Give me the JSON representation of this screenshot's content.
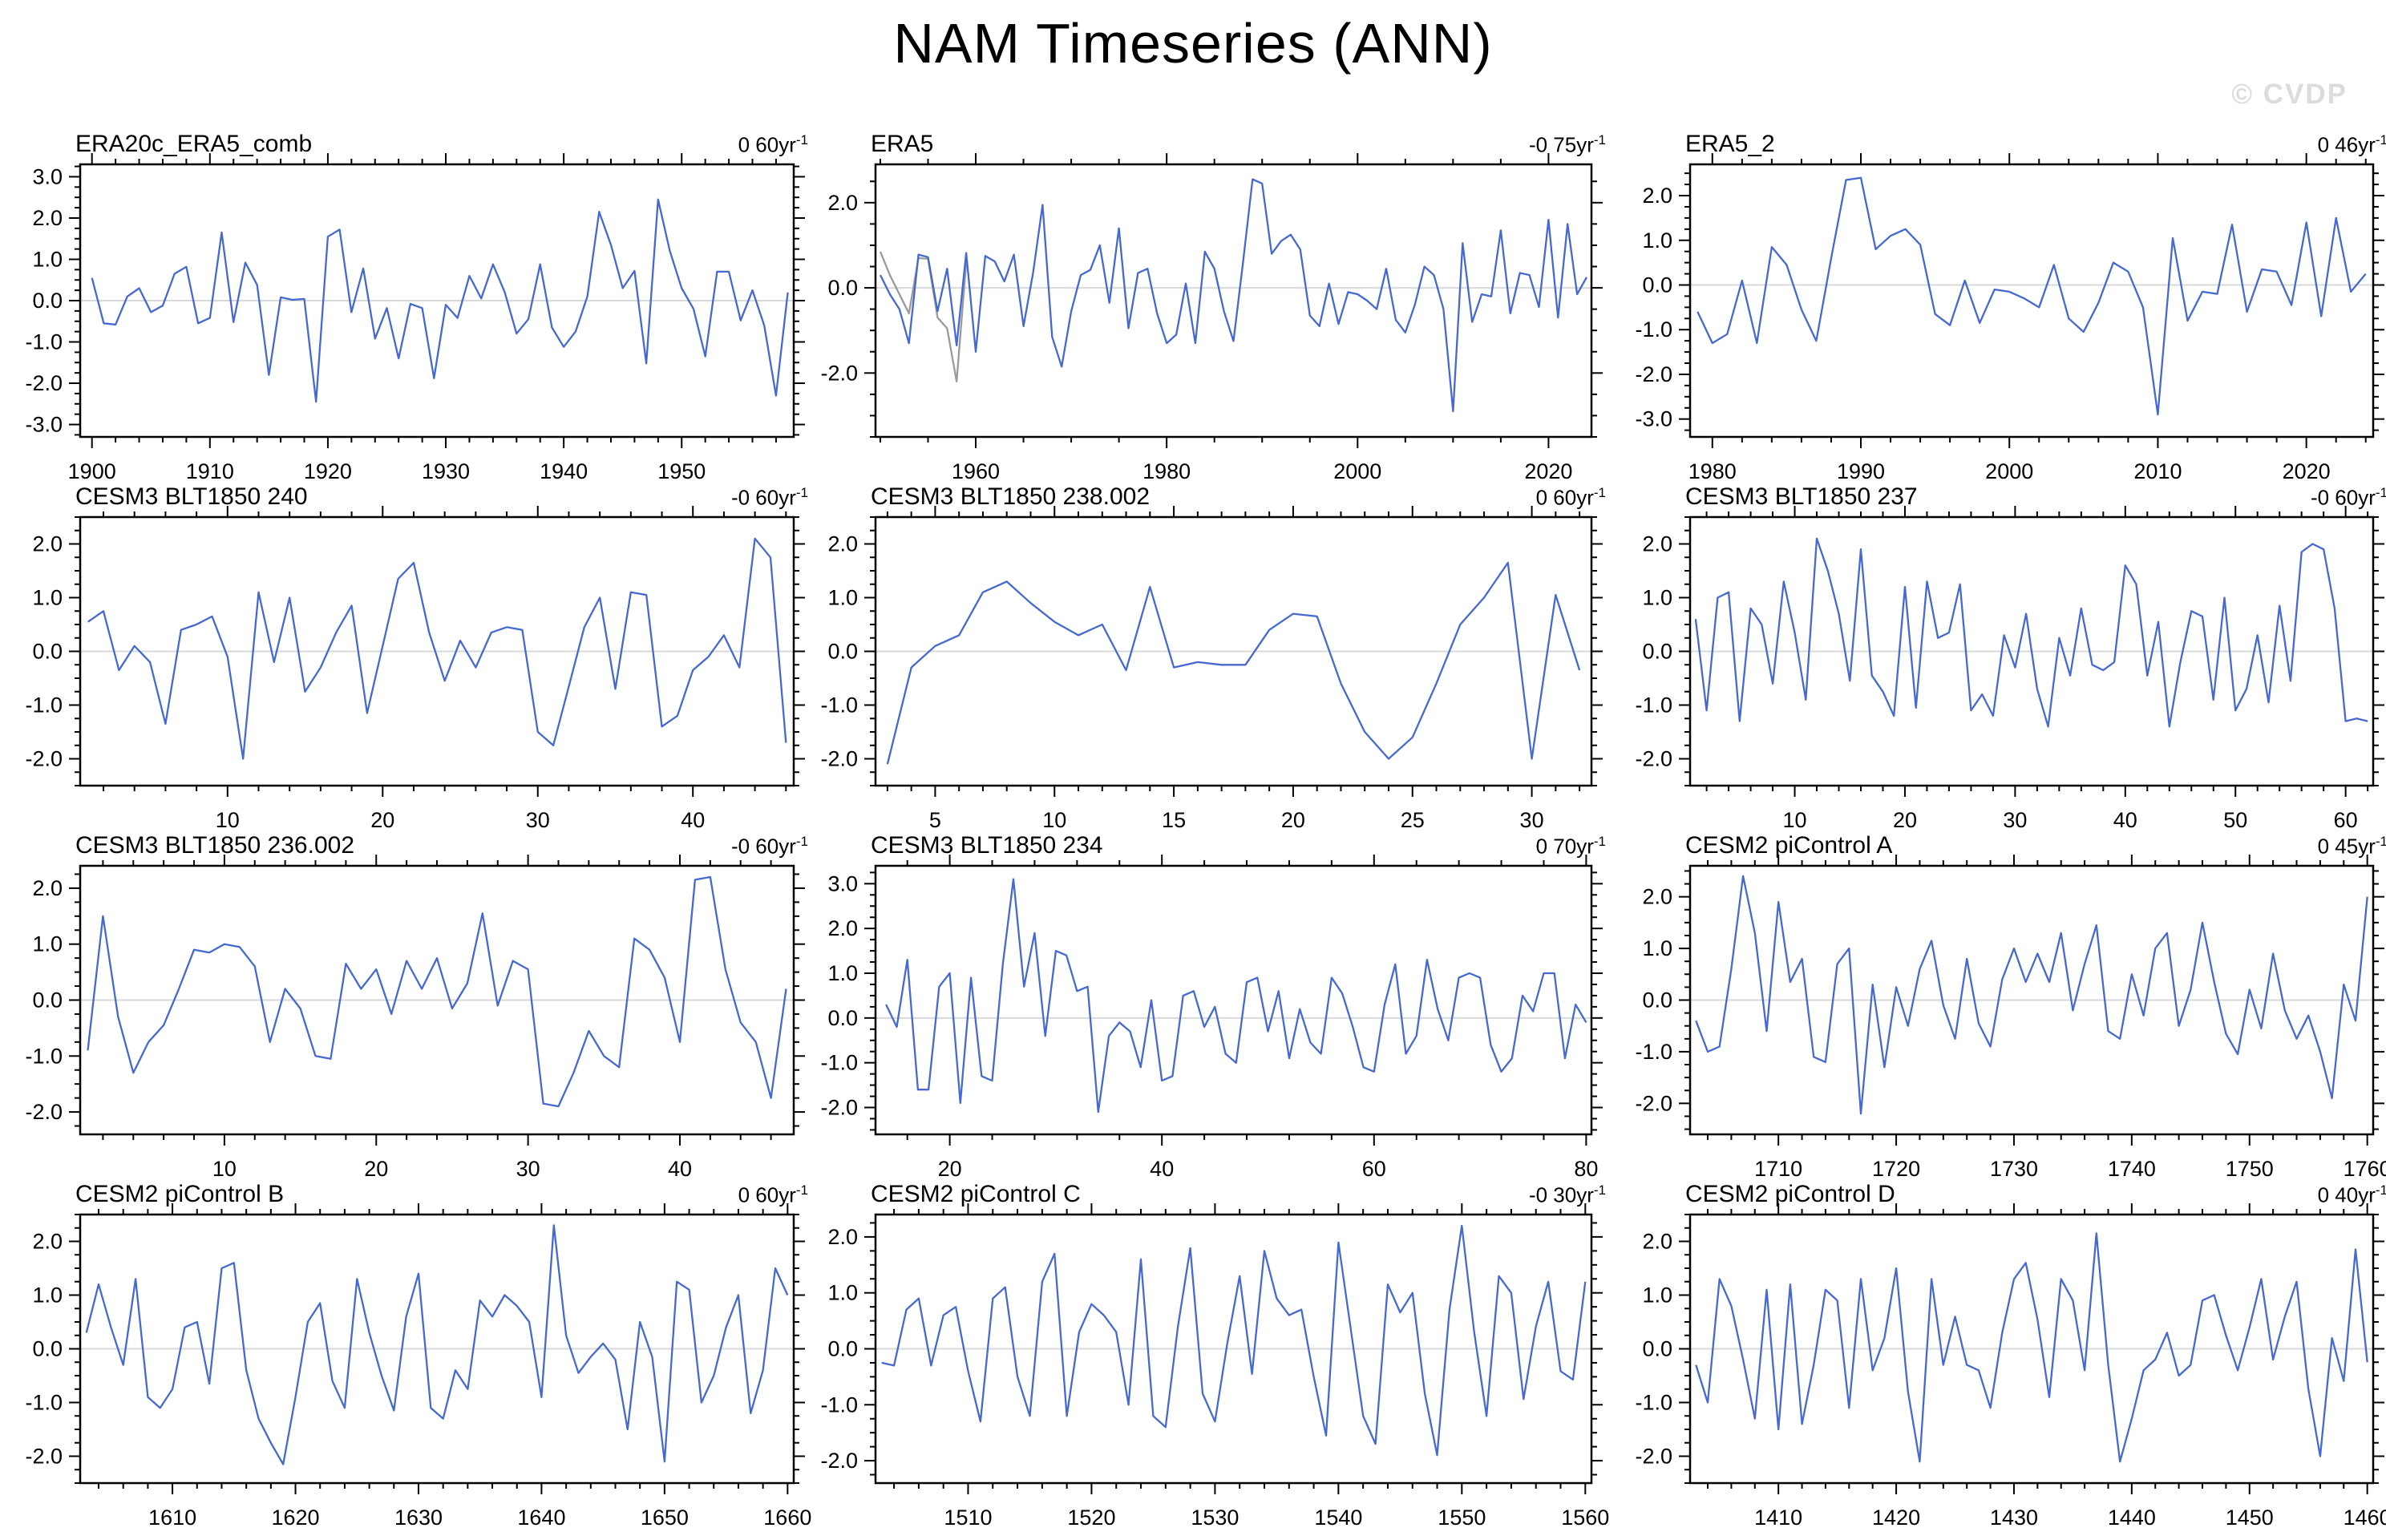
{
  "page": {
    "title": "NAM Timeseries (ANN)",
    "watermark": "© CVDP"
  },
  "chart_data": {
    "type": "line",
    "title": "NAM Timeseries (ANN)",
    "watermark": "© CVDP",
    "ylabel": "",
    "grid": false,
    "line_color": "#4569d0",
    "secondary_line_color": "#9a9a9a",
    "zero_line_color": "#d9d9d9",
    "frame_color": "#000000",
    "panels": [
      {
        "name": "ERA20c_ERA5_comb",
        "trend": "0 60yr",
        "trend_sup": "-1",
        "x_start": 1900,
        "values": [
          0.55,
          -0.55,
          -0.58,
          0.1,
          0.3,
          -0.28,
          -0.12,
          0.65,
          0.82,
          -0.55,
          -0.42,
          1.65,
          -0.52,
          0.92,
          0.38,
          -1.8,
          0.08,
          0.02,
          0.04,
          -2.45,
          1.55,
          1.72,
          -0.28,
          0.78,
          -0.92,
          -0.18,
          -1.4,
          -0.08,
          -0.18,
          -1.88,
          -0.1,
          -0.42,
          0.6,
          0.05,
          0.88,
          0.2,
          -0.8,
          -0.45,
          0.88,
          -0.65,
          -1.12,
          -0.75,
          0.1,
          2.15,
          1.35,
          0.3,
          0.72,
          -1.52,
          2.45,
          1.2,
          0.3,
          -0.2,
          -1.35,
          0.7,
          0.7,
          -0.48,
          0.25,
          -0.6,
          -2.3,
          0.2
        ],
        "xlim": [
          1899,
          1959.5
        ],
        "ylim": [
          -3.3,
          3.3
        ],
        "xticks": [
          1900,
          1910,
          1920,
          1930,
          1940,
          1950
        ],
        "xminor": 2,
        "yticks": [
          3,
          2,
          1,
          0,
          -1,
          -2,
          -3
        ],
        "yminor": 0.25
      },
      {
        "name": "ERA5",
        "trend": "-0 75yr",
        "trend_sup": "-1",
        "x_start": 1950,
        "values": [
          0.3,
          -0.15,
          -0.5,
          -1.3,
          0.78,
          0.72,
          -0.55,
          0.45,
          -1.35,
          0.82,
          -1.5,
          0.75,
          0.62,
          0.15,
          0.78,
          -0.9,
          0.35,
          1.95,
          -1.15,
          -1.85,
          -0.55,
          0.3,
          0.42,
          1.0,
          -0.35,
          1.4,
          -0.95,
          0.35,
          0.45,
          -0.6,
          -1.3,
          -1.1,
          0.1,
          -1.3,
          0.85,
          0.45,
          -0.55,
          -1.25,
          0.6,
          2.55,
          2.45,
          0.8,
          1.1,
          1.25,
          0.9,
          -0.65,
          -0.9,
          0.1,
          -0.85,
          -0.1,
          -0.15,
          -0.3,
          -0.5,
          0.45,
          -0.75,
          -1.05,
          -0.4,
          0.5,
          0.3,
          -0.5,
          -2.9,
          1.05,
          -0.8,
          -0.15,
          -0.2,
          1.35,
          -0.6,
          0.35,
          0.3,
          -0.45,
          1.6,
          -0.7,
          1.5,
          -0.15,
          0.25
        ],
        "gray_x_start": 1950,
        "gray_values": [
          0.85,
          0.3,
          -0.15,
          -0.6,
          0.7,
          0.68,
          -0.7,
          -0.95,
          -2.2,
          0.6
        ],
        "xlim": [
          1949.5,
          2024.5
        ],
        "ylim": [
          -3.5,
          2.9
        ],
        "xticks": [
          1960,
          1980,
          2000,
          2020
        ],
        "xminor": 5,
        "yticks": [
          2,
          0,
          -2
        ],
        "yminor": 0.5
      },
      {
        "name": "ERA5_2",
        "trend": "0 46yr",
        "trend_sup": "-1",
        "x_start": 1979,
        "values": [
          -0.6,
          -1.3,
          -1.1,
          0.1,
          -1.3,
          0.85,
          0.45,
          -0.55,
          -1.25,
          0.6,
          2.35,
          2.4,
          0.8,
          1.1,
          1.25,
          0.9,
          -0.65,
          -0.9,
          0.1,
          -0.85,
          -0.1,
          -0.15,
          -0.3,
          -0.5,
          0.45,
          -0.75,
          -1.05,
          -0.4,
          0.5,
          0.3,
          -0.5,
          -2.9,
          1.05,
          -0.8,
          -0.15,
          -0.2,
          1.35,
          -0.6,
          0.35,
          0.3,
          -0.45,
          1.4,
          -0.7,
          1.5,
          -0.15,
          0.25
        ],
        "xlim": [
          1978.5,
          2024.5
        ],
        "ylim": [
          -3.4,
          2.7
        ],
        "xticks": [
          1980,
          1990,
          2000,
          2010,
          2020
        ],
        "xminor": 2,
        "yticks": [
          2,
          1,
          0,
          -1,
          -2,
          -3
        ],
        "yminor": 0.25
      },
      {
        "name": "CESM3 BLT1850 240",
        "trend": "-0 60yr",
        "trend_sup": "-1",
        "x_start": 1,
        "values": [
          0.55,
          0.75,
          -0.35,
          0.1,
          -0.2,
          -1.35,
          0.4,
          0.5,
          0.65,
          -0.1,
          -2.0,
          1.1,
          -0.2,
          1.0,
          -0.75,
          -0.3,
          0.35,
          0.85,
          -1.15,
          0.1,
          1.35,
          1.65,
          0.35,
          -0.55,
          0.2,
          -0.3,
          0.35,
          0.45,
          0.4,
          -1.5,
          -1.75,
          -0.65,
          0.45,
          1.0,
          -0.7,
          1.1,
          1.05,
          -1.4,
          -1.2,
          -0.35,
          -0.1,
          0.3,
          -0.3,
          2.1,
          1.75,
          -1.7
        ],
        "xlim": [
          0.5,
          46.5
        ],
        "ylim": [
          -2.5,
          2.5
        ],
        "xticks": [
          10,
          20,
          30,
          40
        ],
        "xminor": 2,
        "yticks": [
          2,
          1,
          0,
          -1,
          -2
        ],
        "yminor": 0.25
      },
      {
        "name": "CESM3 BLT1850 238.002",
        "trend": "0 60yr",
        "trend_sup": "-1",
        "x_start": 3,
        "values": [
          -2.1,
          -0.3,
          0.1,
          0.3,
          1.1,
          1.3,
          0.9,
          0.55,
          0.3,
          0.5,
          -0.35,
          1.2,
          -0.3,
          -0.2,
          -0.25,
          -0.25,
          0.4,
          0.7,
          0.65,
          -0.6,
          -1.5,
          -2.0,
          -1.6,
          -0.6,
          0.5,
          1.0,
          1.65,
          -2.0,
          1.05,
          -0.35
        ],
        "xlim": [
          2.5,
          32.5
        ],
        "ylim": [
          -2.5,
          2.5
        ],
        "xticks": [
          5,
          10,
          15,
          20,
          25,
          30
        ],
        "xminor": 1,
        "yticks": [
          2,
          1,
          0,
          -1,
          -2
        ],
        "yminor": 0.25
      },
      {
        "name": "CESM3 BLT1850 237",
        "trend": "-0 60yr",
        "trend_sup": "-1",
        "x_start": 1,
        "values": [
          0.6,
          -1.1,
          1.0,
          1.1,
          -1.3,
          0.8,
          0.5,
          -0.6,
          1.3,
          0.35,
          -0.9,
          2.1,
          1.5,
          0.7,
          -0.55,
          1.9,
          -0.45,
          -0.75,
          -1.2,
          1.2,
          -1.05,
          1.3,
          0.25,
          0.35,
          1.25,
          -1.1,
          -0.8,
          -1.2,
          0.3,
          -0.3,
          0.7,
          -0.7,
          -1.4,
          0.25,
          -0.45,
          0.8,
          -0.25,
          -0.35,
          -0.2,
          1.6,
          1.25,
          -0.45,
          0.55,
          -1.4,
          -0.2,
          0.75,
          0.65,
          -0.9,
          1.0,
          -1.1,
          -0.7,
          0.3,
          -0.95,
          0.85,
          -0.55,
          1.85,
          2.0,
          1.9,
          0.8,
          -1.3,
          -1.25,
          -1.3
        ],
        "xlim": [
          0.5,
          62.5
        ],
        "ylim": [
          -2.5,
          2.5
        ],
        "xticks": [
          10,
          20,
          30,
          40,
          50,
          60
        ],
        "xminor": 2,
        "yticks": [
          2,
          1,
          0,
          -1,
          -2
        ],
        "yminor": 0.25
      },
      {
        "name": "CESM3 BLT1850 236.002",
        "trend": "-0 60yr",
        "trend_sup": "-1",
        "x_start": 1,
        "values": [
          -0.9,
          1.5,
          -0.3,
          -1.3,
          -0.75,
          -0.45,
          0.2,
          0.9,
          0.85,
          1.0,
          0.95,
          0.6,
          -0.75,
          0.2,
          -0.15,
          -1.0,
          -1.05,
          0.65,
          0.2,
          0.55,
          -0.25,
          0.7,
          0.2,
          0.75,
          -0.15,
          0.3,
          1.55,
          -0.1,
          0.7,
          0.55,
          -1.85,
          -1.9,
          -1.3,
          -0.55,
          -1.0,
          -1.2,
          1.1,
          0.9,
          0.4,
          -0.75,
          2.15,
          2.2,
          0.55,
          -0.4,
          -0.75,
          -1.75,
          0.2
        ],
        "xlim": [
          0.5,
          47.5
        ],
        "ylim": [
          -2.4,
          2.4
        ],
        "xticks": [
          10,
          20,
          30,
          40
        ],
        "xminor": 2,
        "yticks": [
          2,
          1,
          0,
          -1,
          -2
        ],
        "yminor": 0.25
      },
      {
        "name": "CESM3 BLT1850 234",
        "trend": "0 70yr",
        "trend_sup": "-1",
        "x_start": 14,
        "values": [
          0.3,
          -0.2,
          1.3,
          -1.6,
          -1.6,
          0.7,
          1.0,
          -1.9,
          0.9,
          -1.3,
          -1.4,
          1.2,
          3.1,
          0.7,
          1.9,
          -0.4,
          1.5,
          1.4,
          0.6,
          0.7,
          -2.1,
          -0.4,
          -0.1,
          -0.3,
          -1.1,
          0.4,
          -1.4,
          -1.3,
          0.5,
          0.6,
          -0.2,
          0.25,
          -0.8,
          -1.0,
          0.8,
          0.9,
          -0.3,
          0.6,
          -0.9,
          0.2,
          -0.55,
          -0.8,
          0.9,
          0.55,
          -0.2,
          -1.1,
          -1.2,
          0.3,
          1.2,
          -0.8,
          -0.4,
          1.3,
          0.2,
          -0.5,
          0.9,
          1.0,
          0.9,
          -0.6,
          -1.2,
          -0.9,
          0.5,
          0.15,
          1.0,
          1.0,
          -0.9,
          0.3,
          -0.1
        ],
        "xlim": [
          13,
          80.5
        ],
        "ylim": [
          -2.6,
          3.4
        ],
        "xticks": [
          20,
          40,
          60,
          80
        ],
        "xminor": 4,
        "yticks": [
          3,
          2,
          1,
          0,
          -1,
          -2
        ],
        "yminor": 0.25
      },
      {
        "name": "CESM2 piControl A",
        "trend": "0 45yr",
        "trend_sup": "-1",
        "x_start": 1703,
        "values": [
          -0.4,
          -1.0,
          -0.9,
          0.6,
          2.4,
          1.3,
          -0.6,
          1.9,
          0.35,
          0.8,
          -1.1,
          -1.2,
          0.7,
          1.0,
          -2.2,
          0.3,
          -1.3,
          0.25,
          -0.5,
          0.6,
          1.15,
          -0.1,
          -0.75,
          0.8,
          -0.45,
          -0.9,
          0.4,
          1.0,
          0.35,
          0.9,
          0.35,
          1.3,
          -0.2,
          0.7,
          1.45,
          -0.6,
          -0.75,
          0.5,
          -0.3,
          1.0,
          1.3,
          -0.5,
          0.2,
          1.5,
          0.35,
          -0.65,
          -1.05,
          0.2,
          -0.55,
          0.9,
          -0.2,
          -0.75,
          -0.3,
          -1.0,
          -1.9,
          0.3,
          -0.4,
          2.0
        ],
        "xlim": [
          1702.5,
          1760.5
        ],
        "ylim": [
          -2.6,
          2.6
        ],
        "xticks": [
          1710,
          1720,
          1730,
          1740,
          1750,
          1760
        ],
        "xminor": 2,
        "yticks": [
          2,
          1,
          0,
          -1,
          -2
        ],
        "yminor": 0.25
      },
      {
        "name": "CESM2 piControl B",
        "trend": "0 60yr",
        "trend_sup": "-1",
        "x_start": 1603,
        "values": [
          0.3,
          1.2,
          0.4,
          -0.3,
          1.3,
          -0.9,
          -1.1,
          -0.75,
          0.4,
          0.5,
          -0.65,
          1.5,
          1.6,
          -0.4,
          -1.3,
          -1.75,
          -2.15,
          -0.9,
          0.5,
          0.85,
          -0.6,
          -1.1,
          1.3,
          0.3,
          -0.5,
          -1.15,
          0.6,
          1.4,
          -1.1,
          -1.3,
          -0.4,
          -0.75,
          0.9,
          0.6,
          1.0,
          0.8,
          0.5,
          -0.9,
          2.3,
          0.25,
          -0.45,
          -0.15,
          0.1,
          -0.2,
          -1.5,
          0.5,
          -0.15,
          -2.1,
          1.25,
          1.1,
          -1.0,
          -0.5,
          0.4,
          1.0,
          -1.2,
          -0.4,
          1.5,
          1.0
        ],
        "xlim": [
          1602.5,
          1660.5
        ],
        "ylim": [
          -2.5,
          2.5
        ],
        "xticks": [
          1610,
          1620,
          1630,
          1640,
          1650,
          1660
        ],
        "xminor": 2,
        "yticks": [
          2,
          1,
          0,
          -1,
          -2
        ],
        "yminor": 0.25
      },
      {
        "name": "CESM2 piControl C",
        "trend": "-0 30yr",
        "trend_sup": "-1",
        "x_start": 1503,
        "values": [
          -0.25,
          -0.3,
          0.7,
          0.9,
          -0.3,
          0.6,
          0.75,
          -0.4,
          -1.3,
          0.9,
          1.1,
          -0.5,
          -1.2,
          1.2,
          1.7,
          -1.2,
          0.3,
          0.8,
          0.6,
          0.3,
          -1.0,
          1.6,
          -1.2,
          -1.4,
          0.4,
          1.8,
          -0.8,
          -1.3,
          0.1,
          1.3,
          -0.45,
          1.75,
          0.9,
          0.6,
          0.7,
          -0.5,
          -1.55,
          1.9,
          0.35,
          -1.2,
          -1.7,
          1.15,
          0.65,
          1.0,
          -0.8,
          -1.9,
          0.7,
          2.2,
          0.3,
          -1.2,
          1.3,
          1.0,
          -0.9,
          0.4,
          1.2,
          -0.4,
          -0.55,
          1.2
        ],
        "xlim": [
          1502.5,
          1560.5
        ],
        "ylim": [
          -2.4,
          2.4
        ],
        "xticks": [
          1510,
          1520,
          1530,
          1540,
          1550,
          1560
        ],
        "xminor": 2,
        "yticks": [
          2,
          1,
          0,
          -1,
          -2
        ],
        "yminor": 0.25
      },
      {
        "name": "CESM2 piControl D",
        "trend": "0 40yr",
        "trend_sup": "-1",
        "x_start": 1403,
        "values": [
          -0.3,
          -1.0,
          1.3,
          0.8,
          -0.2,
          -1.3,
          1.1,
          -1.5,
          1.2,
          -1.4,
          -0.3,
          1.1,
          0.9,
          -1.1,
          1.3,
          -0.4,
          0.2,
          1.5,
          -0.8,
          -2.1,
          1.3,
          -0.3,
          0.6,
          -0.3,
          -0.4,
          -1.1,
          0.3,
          1.3,
          1.6,
          0.55,
          -0.9,
          1.3,
          0.9,
          -0.4,
          2.15,
          -0.3,
          -2.1,
          -1.3,
          -0.4,
          -0.2,
          0.3,
          -0.5,
          -0.3,
          0.9,
          1.0,
          0.25,
          -0.4,
          0.4,
          1.3,
          -0.2,
          0.6,
          1.25,
          -0.75,
          -2.0,
          0.2,
          -0.6,
          1.85,
          -0.25
        ],
        "xlim": [
          1402.5,
          1460.5
        ],
        "ylim": [
          -2.5,
          2.5
        ],
        "xticks": [
          1410,
          1420,
          1430,
          1440,
          1450,
          1460
        ],
        "xminor": 2,
        "yticks": [
          2,
          1,
          0,
          -1,
          -2
        ],
        "yminor": 0.25
      }
    ]
  }
}
